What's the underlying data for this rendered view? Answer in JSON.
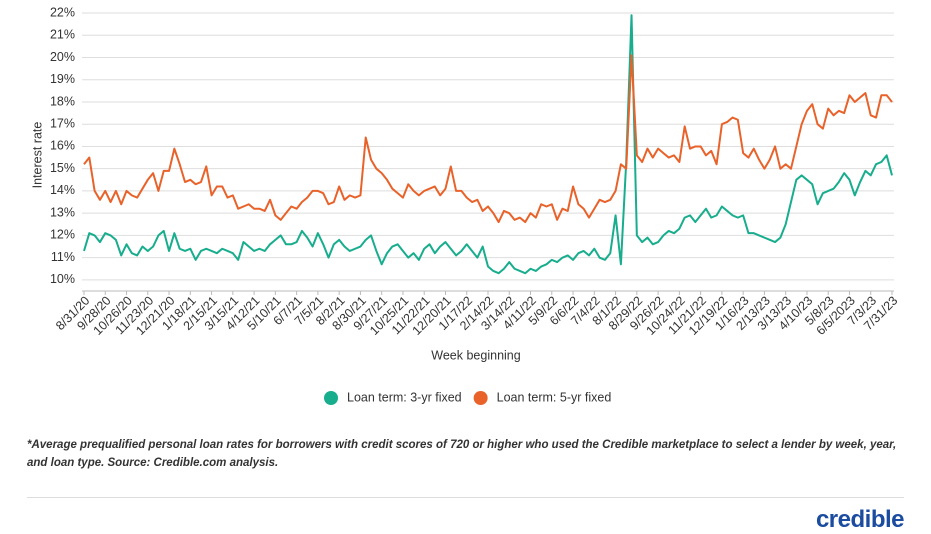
{
  "chart_data": {
    "type": "line",
    "ylabel": "Interest rate",
    "xlabel": "Week beginning",
    "footnote": "*Average prequalified personal loan rates for borrowers with credit scores of 720 or higher who used the Credible marketplace to select a lender by week, year, and loan type. Source: Credible.com analysis.",
    "logo": "credible",
    "legend": "bottom",
    "grid": true,
    "ylim": [
      9.5,
      22
    ],
    "yticks": [
      {
        "value": 10,
        "label": "10%"
      },
      {
        "value": 11,
        "label": "11%"
      },
      {
        "value": 12,
        "label": "12%"
      },
      {
        "value": 13,
        "label": "13%"
      },
      {
        "value": 14,
        "label": "14%"
      },
      {
        "value": 15,
        "label": "15%"
      },
      {
        "value": 16,
        "label": "16%"
      },
      {
        "value": 17,
        "label": "17%"
      },
      {
        "value": 18,
        "label": "18%"
      },
      {
        "value": 19,
        "label": "19%"
      },
      {
        "value": 20,
        "label": "20%"
      },
      {
        "value": 21,
        "label": "21%"
      },
      {
        "value": 22,
        "label": "22%"
      }
    ],
    "categories": [
      "8/31/20",
      null,
      null,
      null,
      "9/28/20",
      null,
      null,
      null,
      "10/26/20",
      null,
      null,
      null,
      "11/23/20",
      null,
      null,
      null,
      "12/21/20",
      null,
      null,
      null,
      "1/18/21",
      null,
      null,
      null,
      "2/15/21",
      null,
      null,
      null,
      "3/15/21",
      null,
      null,
      null,
      "4/12/21",
      null,
      null,
      null,
      "5/10/21",
      null,
      null,
      null,
      "6/7/21",
      null,
      null,
      null,
      "7/5/21",
      null,
      null,
      null,
      "8/2/21",
      null,
      null,
      null,
      "8/30/21",
      null,
      null,
      null,
      "9/27/21",
      null,
      null,
      null,
      "10/25/21",
      null,
      null,
      null,
      "11/22/21",
      null,
      null,
      null,
      "12/20/21",
      null,
      null,
      null,
      "1/17/22",
      null,
      null,
      null,
      "2/14/22",
      null,
      null,
      null,
      "3/14/22",
      null,
      null,
      null,
      "4/11/22",
      null,
      null,
      null,
      "5/9/22",
      null,
      null,
      null,
      "6/6/22",
      null,
      null,
      null,
      "7/4/22",
      null,
      null,
      null,
      "8/1/22",
      null,
      null,
      null,
      "8/29/22",
      null,
      null,
      null,
      "9/26/22",
      null,
      null,
      null,
      "10/24/22",
      null,
      null,
      null,
      "11/21/22",
      null,
      null,
      null,
      "12/19/22",
      null,
      null,
      null,
      "1/16/23",
      null,
      null,
      null,
      "2/13/23",
      null,
      null,
      null,
      "3/13/23",
      null,
      null,
      null,
      "4/10/23",
      null,
      null,
      null,
      "5/8/23",
      null,
      null,
      null,
      "6/5/2023",
      null,
      null,
      null,
      "7/3/23",
      null,
      null,
      null,
      "7/31/23"
    ],
    "series": [
      {
        "name": "Loan term: 3-yr fixed",
        "color": "#17ad8d",
        "values": [
          11.3,
          12.1,
          12.0,
          11.7,
          12.1,
          12.0,
          11.8,
          11.1,
          11.6,
          11.2,
          11.1,
          11.5,
          11.3,
          11.5,
          12.0,
          12.2,
          11.3,
          12.1,
          11.4,
          11.3,
          11.4,
          10.9,
          11.3,
          11.4,
          11.3,
          11.2,
          11.4,
          11.3,
          11.2,
          10.9,
          11.7,
          11.5,
          11.3,
          11.4,
          11.3,
          11.6,
          11.8,
          12.0,
          11.6,
          11.6,
          11.7,
          12.2,
          11.9,
          11.5,
          12.1,
          11.6,
          11.0,
          11.6,
          11.8,
          11.5,
          11.3,
          11.4,
          11.5,
          11.8,
          12.0,
          11.3,
          10.7,
          11.2,
          11.5,
          11.6,
          11.3,
          11.0,
          11.2,
          10.9,
          11.4,
          11.6,
          11.2,
          11.5,
          11.7,
          11.4,
          11.1,
          11.3,
          11.6,
          11.3,
          11.0,
          11.5,
          10.6,
          10.4,
          10.3,
          10.5,
          10.8,
          10.5,
          10.4,
          10.3,
          10.5,
          10.4,
          10.6,
          10.7,
          10.9,
          10.8,
          11.0,
          11.1,
          10.9,
          11.2,
          11.3,
          11.1,
          11.4,
          11.0,
          10.9,
          11.2,
          12.9,
          10.7,
          15.3,
          21.9,
          12.0,
          11.7,
          11.9,
          11.6,
          11.7,
          12.0,
          12.2,
          12.1,
          12.3,
          12.8,
          12.9,
          12.6,
          12.9,
          13.2,
          12.8,
          12.9,
          13.3,
          13.1,
          12.9,
          12.8,
          12.9,
          12.1,
          12.1,
          12.0,
          11.9,
          11.8,
          11.7,
          11.9,
          12.5,
          13.5,
          14.5,
          14.7,
          14.5,
          14.3,
          13.4,
          13.9,
          14.0,
          14.1,
          14.4,
          14.8,
          14.5,
          13.8,
          14.4,
          14.9,
          14.7,
          15.2,
          15.3,
          15.6,
          14.7
        ]
      },
      {
        "name": "Loan term: 5-yr fixed",
        "color": "#e8622a",
        "values": [
          15.2,
          15.5,
          14.0,
          13.6,
          14.0,
          13.5,
          14.0,
          13.4,
          14.0,
          13.8,
          13.7,
          14.1,
          14.5,
          14.8,
          14.0,
          14.9,
          14.9,
          15.9,
          15.2,
          14.4,
          14.5,
          14.3,
          14.4,
          15.1,
          13.8,
          14.2,
          14.2,
          13.7,
          13.8,
          13.2,
          13.3,
          13.4,
          13.2,
          13.2,
          13.1,
          13.6,
          12.9,
          12.7,
          13.0,
          13.3,
          13.2,
          13.5,
          13.7,
          14.0,
          14.0,
          13.9,
          13.4,
          13.5,
          14.2,
          13.6,
          13.8,
          13.7,
          13.8,
          16.4,
          15.4,
          15.0,
          14.8,
          14.5,
          14.1,
          13.9,
          13.7,
          14.3,
          14.0,
          13.8,
          14.0,
          14.1,
          14.2,
          13.8,
          14.1,
          15.1,
          14.0,
          14.0,
          13.7,
          13.5,
          13.6,
          13.1,
          13.3,
          13.0,
          12.6,
          13.1,
          13.0,
          12.7,
          12.8,
          12.6,
          13.0,
          12.8,
          13.4,
          13.3,
          13.4,
          12.7,
          13.2,
          13.1,
          14.2,
          13.4,
          13.2,
          12.8,
          13.2,
          13.6,
          13.5,
          13.6,
          14.0,
          15.2,
          15.0,
          20.1,
          15.6,
          15.3,
          15.9,
          15.5,
          15.9,
          15.7,
          15.5,
          15.6,
          15.3,
          16.9,
          15.9,
          16.0,
          16.0,
          15.6,
          15.8,
          15.2,
          17.0,
          17.1,
          17.3,
          17.2,
          15.7,
          15.5,
          15.9,
          15.4,
          15.0,
          15.4,
          16.0,
          15.0,
          15.2,
          15.0,
          16.0,
          17.0,
          17.6,
          17.9,
          17.0,
          16.8,
          17.7,
          17.4,
          17.6,
          17.5,
          18.3,
          18.0,
          18.2,
          18.4,
          17.4,
          17.3,
          18.3,
          18.3,
          18.0
        ]
      }
    ]
  }
}
